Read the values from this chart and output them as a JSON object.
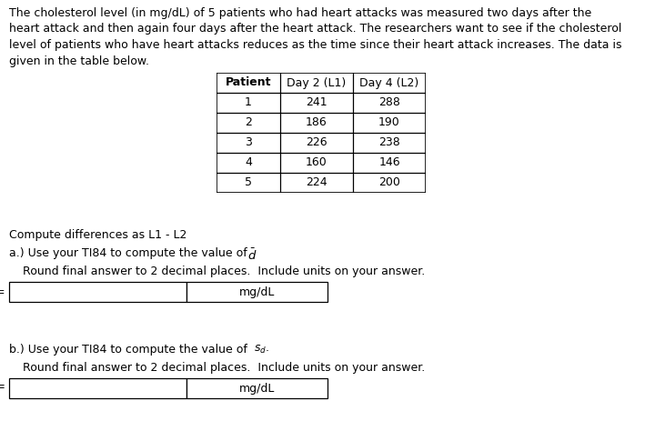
{
  "title_text": "The cholesterol level (in mg/dL) of 5 patients who had heart attacks was measured two days after the\nheart attack and then again four days after the heart attack. The researchers want to see if the cholesterol\nlevel of patients who have heart attacks reduces as the time since their heart attack increases. The data is\ngiven in the table below.",
  "table_headers": [
    "Patient",
    "Day 2 (L1)",
    "Day 4 (L2)"
  ],
  "table_data": [
    [
      "1",
      "241",
      "288"
    ],
    [
      "2",
      "186",
      "190"
    ],
    [
      "3",
      "226",
      "238"
    ],
    [
      "4",
      "160",
      "146"
    ],
    [
      "5",
      "224",
      "200"
    ]
  ],
  "compute_text": "Compute differences as L1 - L2",
  "part_a_label": "a.) Use your TI84 to compute the value of ",
  "part_a_round": "Round final answer to 2 decimal places.  Include units on your answer.",
  "part_a_units": "mg/dL",
  "part_b_label": "b.) Use your TI84 to compute the value of ",
  "part_b_round": "Round final answer to 2 decimal places.  Include units on your answer.",
  "part_b_units": "mg/dL",
  "bg_color": "#ffffff",
  "text_color": "#000000",
  "font_size": 9.0,
  "table_font_size": 9.0
}
